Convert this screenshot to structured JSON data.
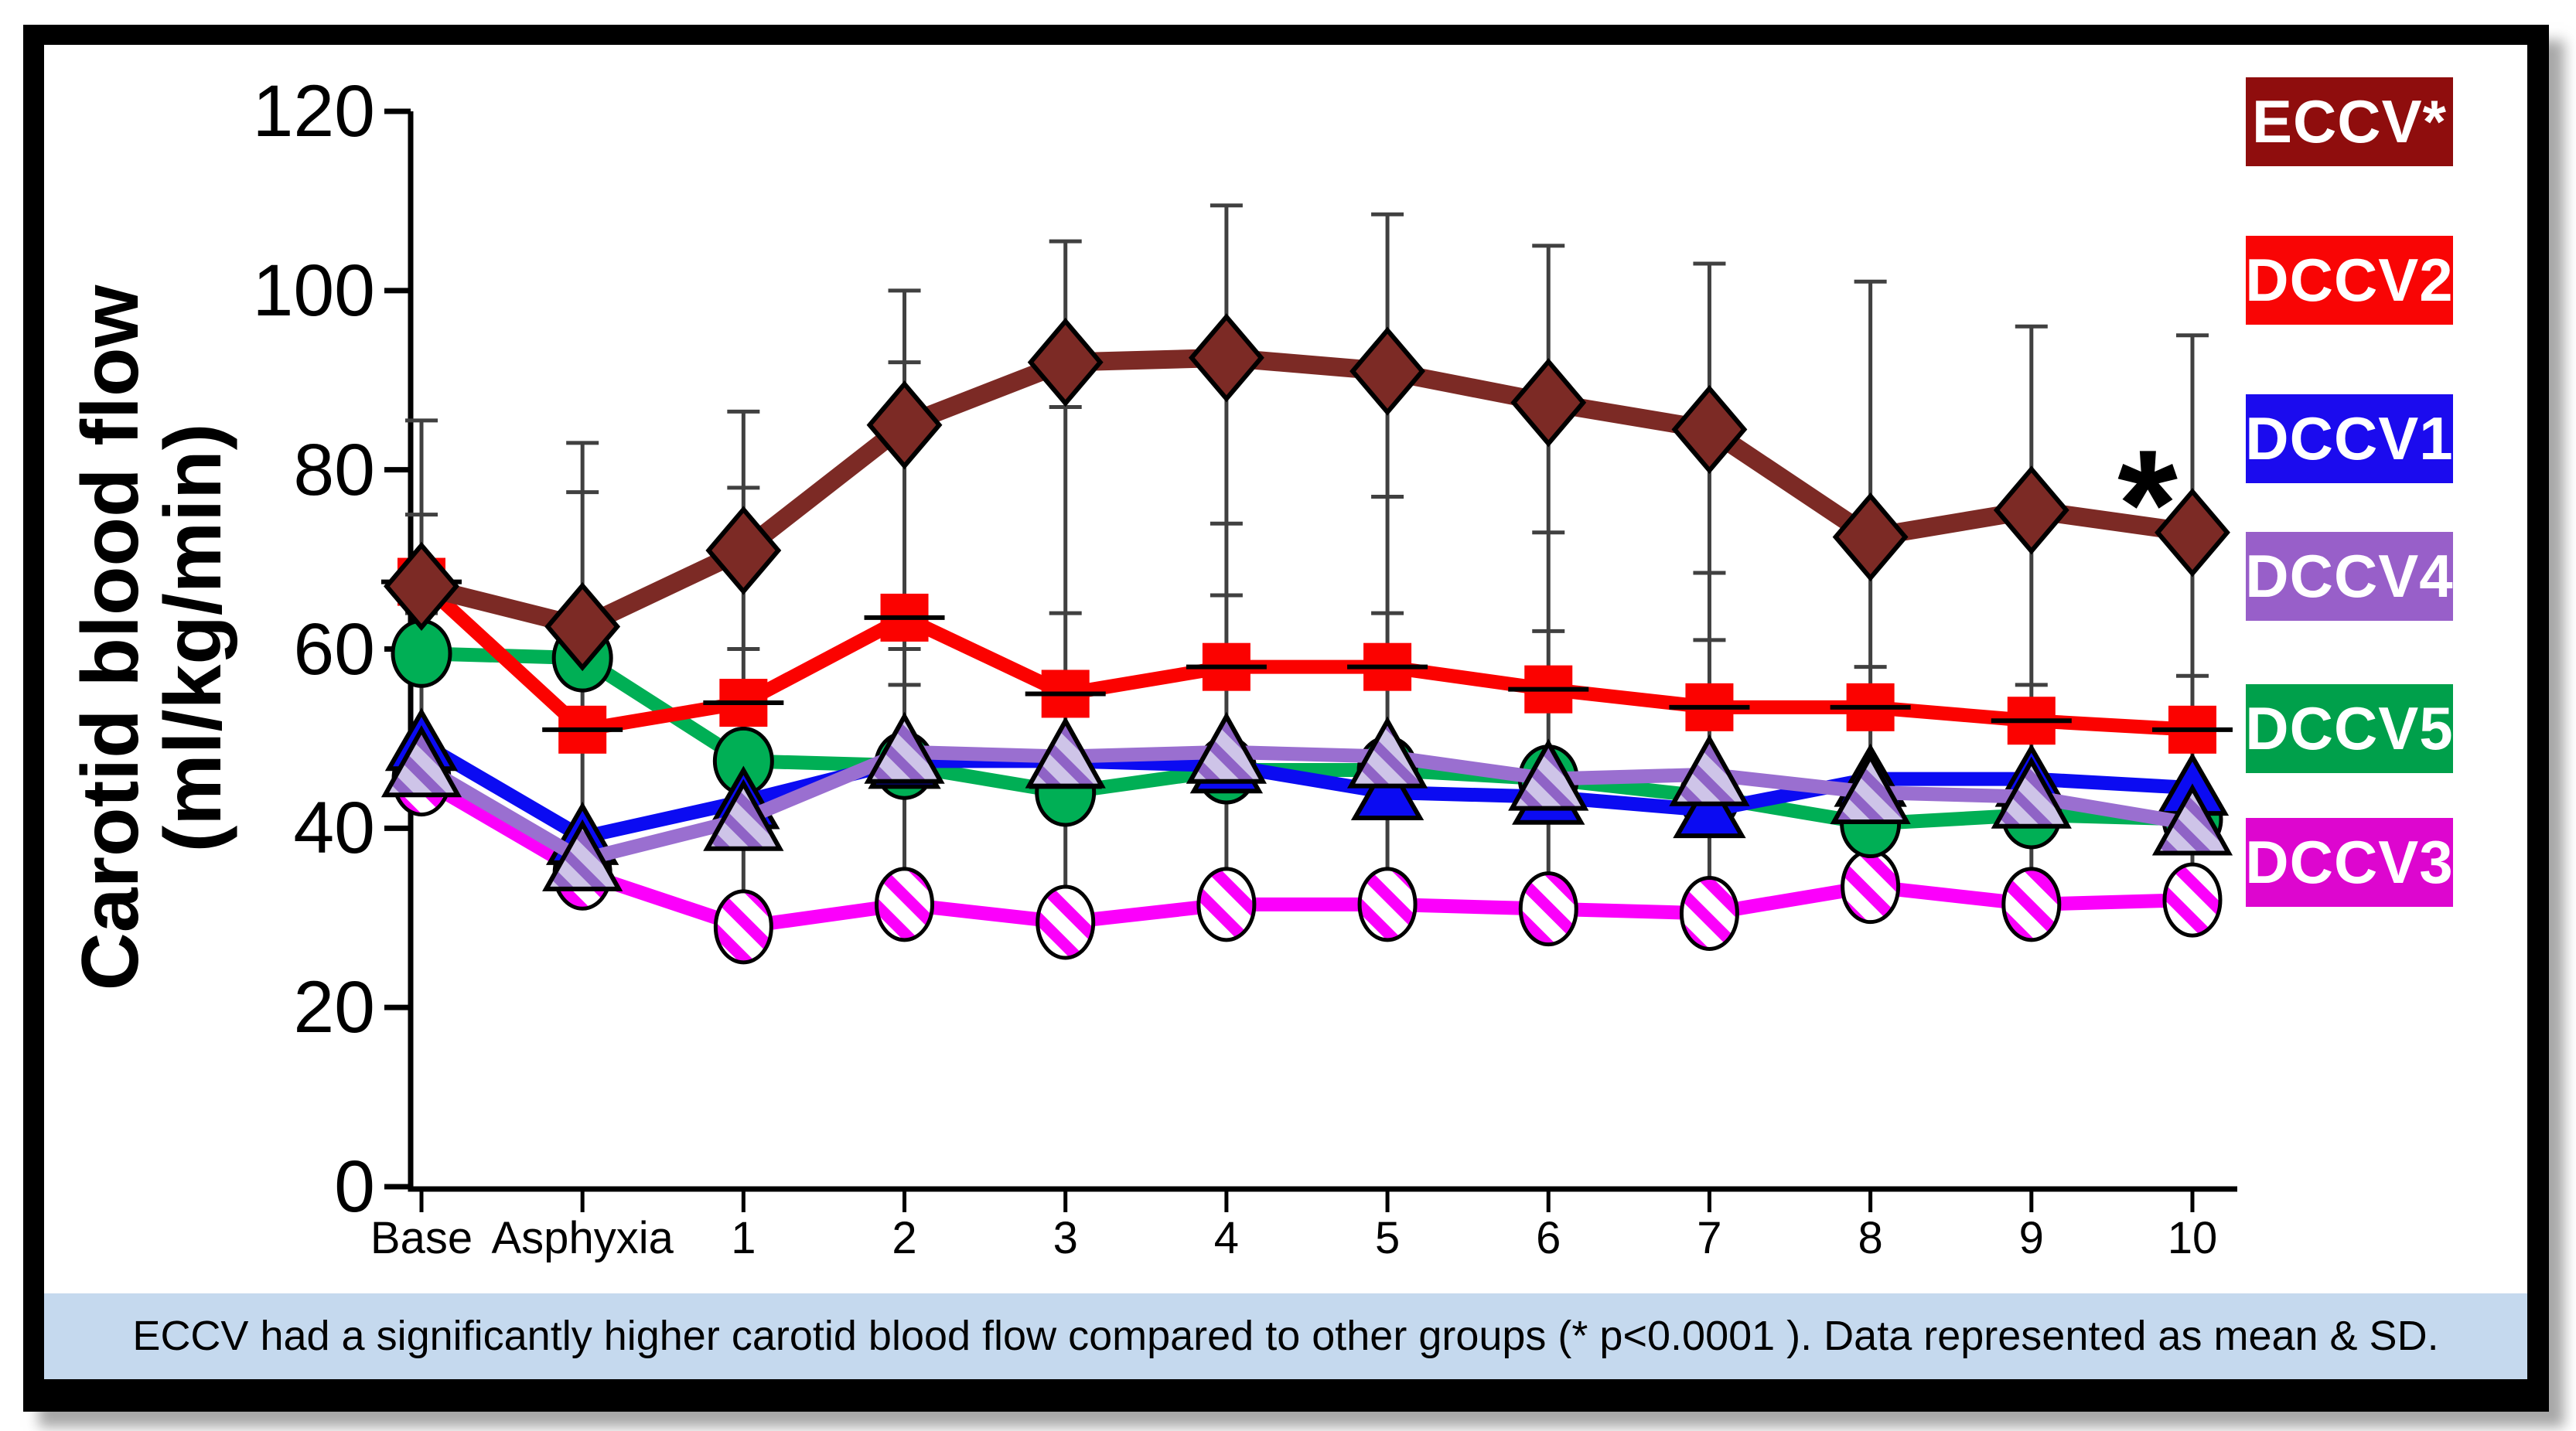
{
  "figure": {
    "caption": "ECCV had a significantly higher carotid blood flow compared to other groups (* p<0.0001 ). Data represented as mean & SD.",
    "significance_marker": "*"
  },
  "style_colors": {
    "background": "#FFFFFF",
    "frame": "#000000",
    "caption_bg": "#C5D9EE",
    "axis": "#000000",
    "error_bar": "#404040"
  },
  "chart_data": {
    "type": "line",
    "title": "",
    "ylabel_line1": "Carotid blood flow",
    "ylabel_line2": "(ml/kg/min)",
    "xlabel": "",
    "categories": [
      "Base",
      "Asphyxia",
      "1",
      "2",
      "3",
      "4",
      "5",
      "6",
      "7",
      "8",
      "9",
      "10"
    ],
    "ylim": [
      0,
      120
    ],
    "yticks": [
      0,
      20,
      40,
      60,
      80,
      100,
      120
    ],
    "grid": false,
    "legend_position": "right",
    "series": [
      {
        "name": "ECCV*",
        "marker": "diamond",
        "color": "#7C2A25",
        "legend_color": "#8F0D0D",
        "values": [
          67,
          62.5,
          71,
          85,
          92,
          92.5,
          91,
          87.5,
          84.5,
          72.5,
          75.5,
          73
        ]
      },
      {
        "name": "DCCV2",
        "marker": "square",
        "color": "#FB0200",
        "legend_color": "#F90505",
        "values": [
          67.5,
          51,
          54,
          63.5,
          55,
          58,
          58,
          55.5,
          53.5,
          53.5,
          52,
          51
        ]
      },
      {
        "name": "DCCV1",
        "marker": "triangle",
        "color": "#0B0BF2",
        "legend_color": "#1B0BEE",
        "values": [
          49.5,
          39,
          43,
          47.5,
          47.5,
          47,
          44,
          43.5,
          42,
          45.5,
          45.5,
          44.5
        ]
      },
      {
        "name": "DCCV4",
        "marker": "hatched-triangle",
        "color": "#9A6FD0",
        "legend_color": "#985FC9",
        "values": [
          47,
          36.5,
          41,
          48.5,
          48,
          48.5,
          48,
          45.5,
          46,
          44,
          43.5,
          40.5
        ]
      },
      {
        "name": "DCCV5",
        "marker": "circle",
        "color": "#00AF55",
        "legend_color": "#00A04B",
        "values": [
          59.5,
          59,
          47.5,
          47,
          44,
          46.5,
          46.5,
          45.5,
          43.5,
          40.5,
          41.5,
          41
        ]
      },
      {
        "name": "DCCV3",
        "marker": "hatched-ellipse",
        "color": "#FB00FB",
        "legend_color": "#DD06CF",
        "values": [
          45.5,
          35,
          29,
          31.5,
          29.5,
          31.5,
          31.5,
          31,
          30.5,
          33.5,
          31.5,
          32
        ]
      }
    ],
    "error_bars": {
      "represents": "SD",
      "direction": "upper",
      "caps_by_point": [
        [
          85.5,
          75,
          64
        ],
        [
          83,
          77.5
        ],
        [
          86.5,
          78,
          60
        ],
        [
          100,
          92,
          60,
          56
        ],
        [
          105.5,
          87,
          64,
          56
        ],
        [
          109.5,
          74,
          66
        ],
        [
          108.5,
          77,
          64
        ],
        [
          105,
          73,
          62
        ],
        [
          103,
          68.5,
          61
        ],
        [
          101,
          58,
          54
        ],
        [
          96,
          56,
          52
        ],
        [
          95,
          57,
          53
        ]
      ]
    },
    "annotation": {
      "text": "*",
      "between_categories": [
        "9",
        "10"
      ],
      "y_value": 80,
      "meaning": "p<0.0001"
    }
  }
}
